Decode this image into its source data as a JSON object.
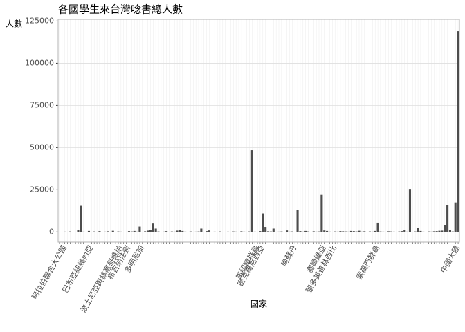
{
  "chart_data": {
    "type": "bar",
    "title": "各國學生來台灣唸書總人數",
    "y_label": "人數",
    "x_label": "國家",
    "categories": [
      null,
      null,
      "阿拉伯聯合大公國",
      null,
      null,
      null,
      null,
      null,
      null,
      null,
      null,
      null,
      "巴布亞紐幾內亞",
      null,
      null,
      null,
      null,
      null,
      null,
      null,
      null,
      null,
      null,
      "波士尼亞與赫塞哥維納",
      null,
      null,
      "布吉納法索",
      null,
      null,
      null,
      null,
      "多明尼加",
      null,
      null,
      null,
      null,
      null,
      null,
      null,
      null,
      null,
      null,
      null,
      null,
      null,
      null,
      null,
      null,
      null,
      null,
      null,
      null,
      null,
      null,
      null,
      null,
      null,
      null,
      null,
      null,
      null,
      null,
      null,
      null,
      null,
      null,
      null,
      null,
      null,
      null,
      null,
      null,
      null,
      null,
      "馬紹爾群島",
      null,
      "密克羅尼西亞",
      null,
      null,
      null,
      null,
      null,
      null,
      null,
      null,
      null,
      null,
      null,
      "南蘇丹",
      null,
      null,
      null,
      null,
      null,
      null,
      null,
      null,
      null,
      null,
      "塞爾維亞",
      null,
      null,
      null,
      "聖多美普林西比",
      null,
      null,
      null,
      null,
      null,
      null,
      null,
      null,
      null,
      null,
      null,
      null,
      null,
      null,
      null,
      "索羅門群島",
      null,
      null,
      null,
      null,
      null,
      null,
      null,
      null,
      null,
      null,
      null,
      null,
      null,
      null,
      null,
      null,
      null,
      null,
      null,
      null,
      null,
      null,
      null,
      null,
      null,
      null,
      null,
      null,
      null,
      "中國大陸"
    ],
    "values": [
      100,
      50,
      200,
      0,
      300,
      100,
      150,
      1000,
      15500,
      200,
      50,
      600,
      0,
      300,
      100,
      500,
      0,
      200,
      400,
      100,
      700,
      50,
      300,
      200,
      100,
      0,
      500,
      300,
      600,
      200,
      3200,
      100,
      400,
      800,
      1000,
      5000,
      2000,
      300,
      100,
      200,
      500,
      100,
      300,
      200,
      800,
      1000,
      600,
      200,
      100,
      300,
      100,
      200,
      300,
      2000,
      100,
      500,
      900,
      100,
      200,
      100,
      300,
      100,
      50,
      200,
      100,
      300,
      200,
      100,
      400,
      200,
      100,
      300,
      48500,
      200,
      100,
      500,
      11000,
      3000,
      400,
      300,
      2000,
      100,
      200,
      300,
      100,
      900,
      200,
      300,
      100,
      13000,
      500,
      200,
      600,
      300,
      100,
      400,
      200,
      300,
      22000,
      900,
      600,
      200,
      100,
      300,
      200,
      500,
      400,
      300,
      200,
      600,
      500,
      300,
      700,
      200,
      400,
      100,
      300,
      200,
      600,
      5500,
      300,
      200,
      100,
      400,
      300,
      200,
      100,
      300,
      500,
      1000,
      200,
      25500,
      100,
      300,
      2500,
      600,
      200,
      100,
      300,
      200,
      400,
      500,
      700,
      800,
      4000,
      16000,
      1000,
      300,
      17500,
      119000
    ],
    "color": "#4d4d4d",
    "ylim": [
      -6000,
      126000
    ],
    "yticks": [
      0,
      25000,
      50000,
      75000,
      100000,
      125000
    ],
    "grid": true
  }
}
